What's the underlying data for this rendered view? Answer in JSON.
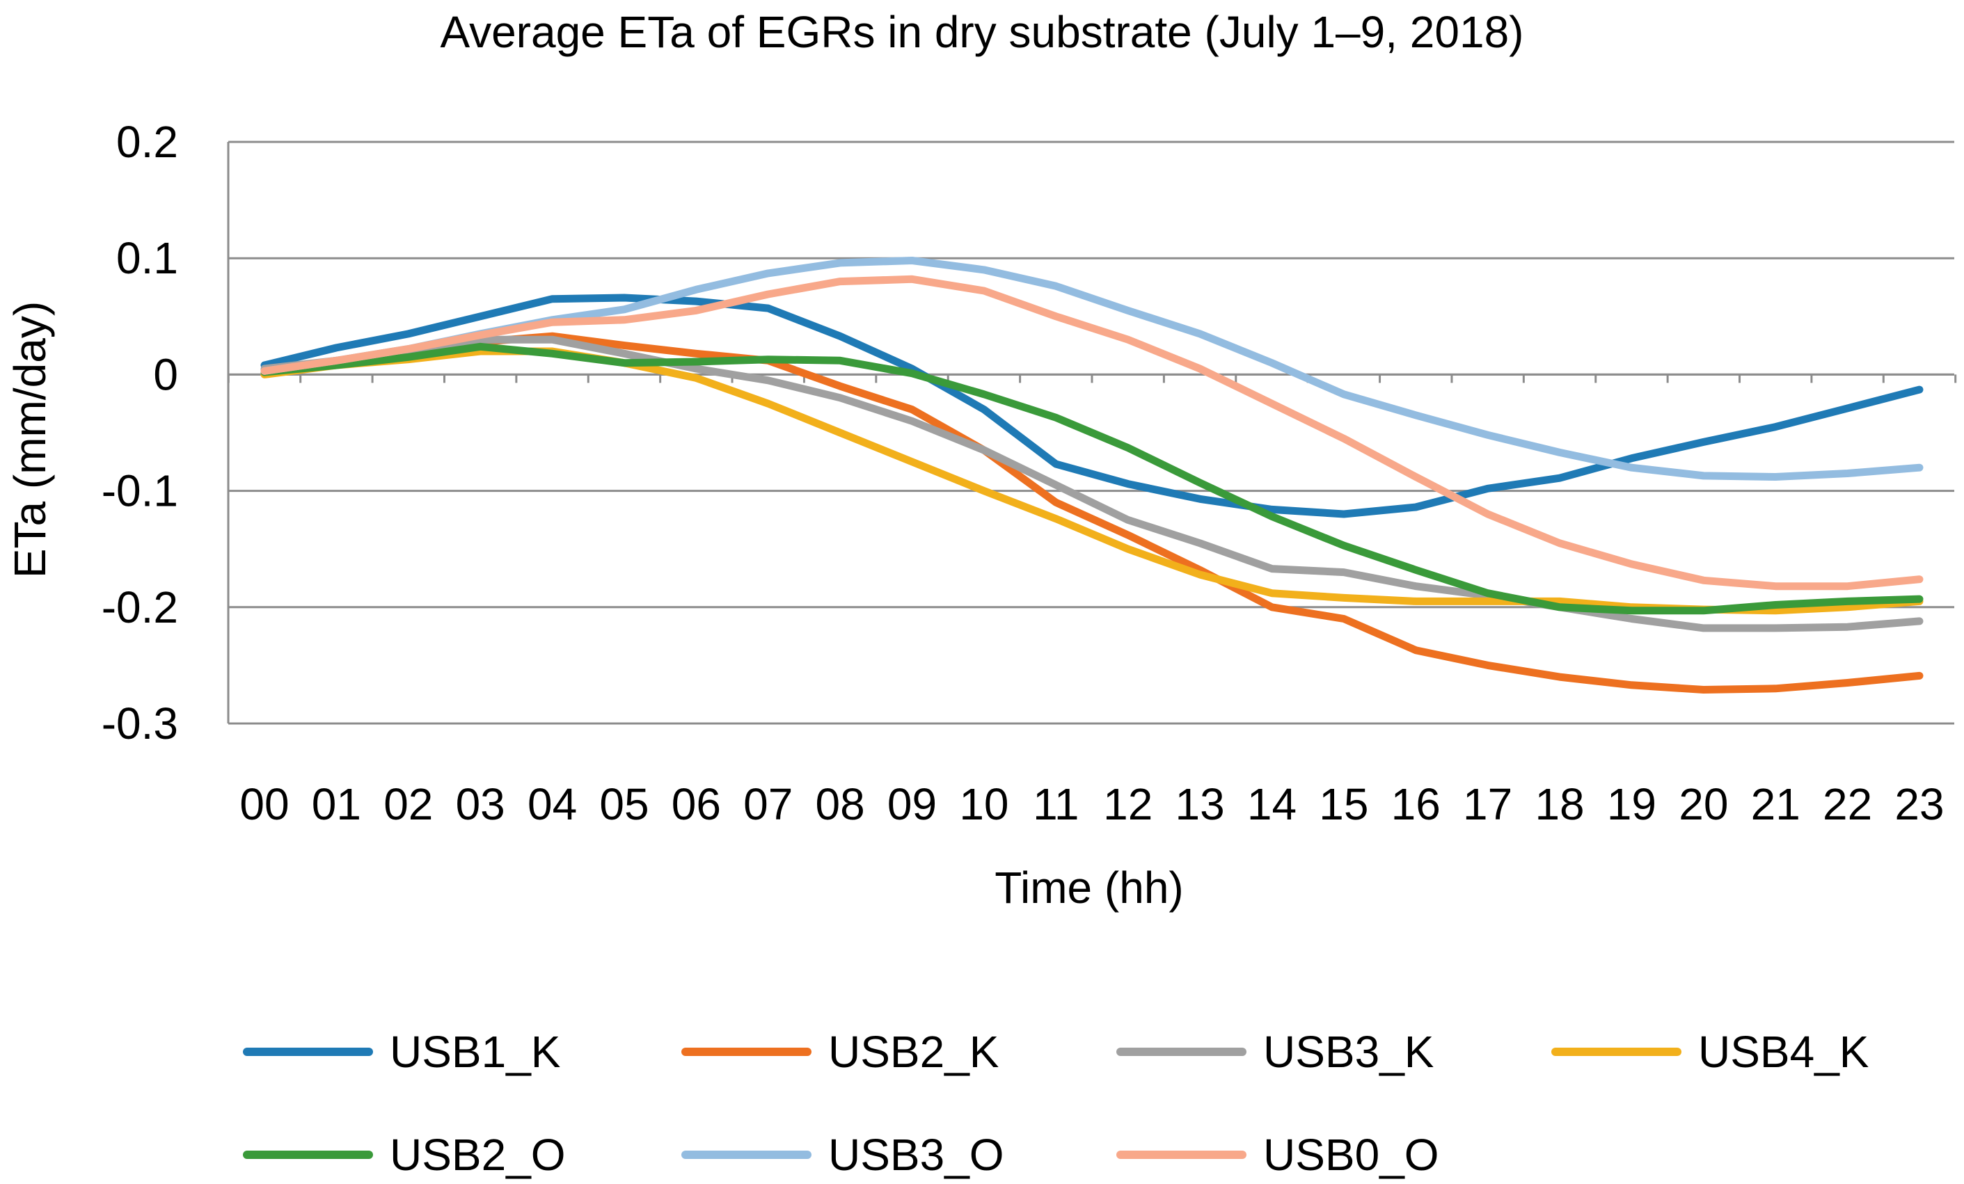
{
  "chart_data": {
    "type": "line",
    "title": "Average ETa of EGRs in dry substrate (July 1–9, 2018)",
    "xlabel": "Time (hh)",
    "ylabel": "ETa (mm/day)",
    "categories": [
      "00",
      "01",
      "02",
      "03",
      "04",
      "05",
      "06",
      "07",
      "08",
      "09",
      "10",
      "11",
      "12",
      "13",
      "14",
      "15",
      "16",
      "17",
      "18",
      "19",
      "20",
      "21",
      "22",
      "23"
    ],
    "ylim": [
      -0.3,
      0.2
    ],
    "yticks": [
      0.2,
      0.1,
      0,
      -0.1,
      -0.2,
      -0.3
    ],
    "ytick_labels": [
      "0.2",
      "0.1",
      "0",
      "-0.1",
      "-0.2",
      "-0.3"
    ],
    "grid": true,
    "legend_position": "bottom",
    "series": [
      {
        "name": "USB1_K",
        "color": "#1f7ab5",
        "values": [
          0.008,
          0.023,
          0.035,
          0.05,
          0.065,
          0.066,
          0.063,
          0.057,
          0.033,
          0.005,
          -0.03,
          -0.077,
          -0.094,
          -0.107,
          -0.116,
          -0.12,
          -0.114,
          -0.098,
          -0.089,
          -0.072,
          -0.058,
          -0.045,
          -0.029,
          -0.013
        ]
      },
      {
        "name": "USB2_K",
        "color": "#ed7020",
        "values": [
          0.004,
          0.01,
          0.018,
          0.028,
          0.033,
          0.025,
          0.018,
          0.012,
          -0.01,
          -0.03,
          -0.065,
          -0.11,
          -0.138,
          -0.168,
          -0.2,
          -0.21,
          -0.237,
          -0.25,
          -0.26,
          -0.267,
          -0.271,
          -0.27,
          -0.265,
          -0.259
        ]
      },
      {
        "name": "USB3_K",
        "color": "#a0a0a0",
        "values": [
          0.005,
          0.012,
          0.02,
          0.03,
          0.03,
          0.018,
          0.005,
          -0.005,
          -0.02,
          -0.04,
          -0.065,
          -0.095,
          -0.125,
          -0.145,
          -0.167,
          -0.17,
          -0.182,
          -0.19,
          -0.2,
          -0.21,
          -0.218,
          -0.218,
          -0.217,
          -0.212
        ]
      },
      {
        "name": "USB4_K",
        "color": "#f2b01b",
        "values": [
          0.0,
          0.008,
          0.013,
          0.02,
          0.02,
          0.01,
          -0.003,
          -0.025,
          -0.05,
          -0.075,
          -0.1,
          -0.124,
          -0.15,
          -0.172,
          -0.188,
          -0.192,
          -0.195,
          -0.195,
          -0.195,
          -0.2,
          -0.202,
          -0.203,
          -0.2,
          -0.195
        ]
      },
      {
        "name": "USB2_O",
        "color": "#3a9a3a",
        "values": [
          0.002,
          0.008,
          0.015,
          0.024,
          0.018,
          0.01,
          0.011,
          0.013,
          0.012,
          0.001,
          -0.017,
          -0.037,
          -0.063,
          -0.093,
          -0.122,
          -0.147,
          -0.168,
          -0.188,
          -0.2,
          -0.203,
          -0.203,
          -0.198,
          -0.195,
          -0.193
        ]
      },
      {
        "name": "USB3_O",
        "color": "#93bce0",
        "values": [
          0.003,
          0.012,
          0.022,
          0.035,
          0.047,
          0.056,
          0.073,
          0.087,
          0.096,
          0.098,
          0.09,
          0.076,
          0.055,
          0.035,
          0.01,
          -0.017,
          -0.035,
          -0.052,
          -0.067,
          -0.08,
          -0.087,
          -0.088,
          -0.085,
          -0.08
        ]
      },
      {
        "name": "USB0_O",
        "color": "#f8a88a",
        "values": [
          0.003,
          0.012,
          0.022,
          0.034,
          0.045,
          0.047,
          0.055,
          0.069,
          0.08,
          0.082,
          0.072,
          0.05,
          0.03,
          0.005,
          -0.025,
          -0.055,
          -0.088,
          -0.12,
          -0.145,
          -0.163,
          -0.177,
          -0.182,
          -0.182,
          -0.176
        ]
      }
    ]
  }
}
